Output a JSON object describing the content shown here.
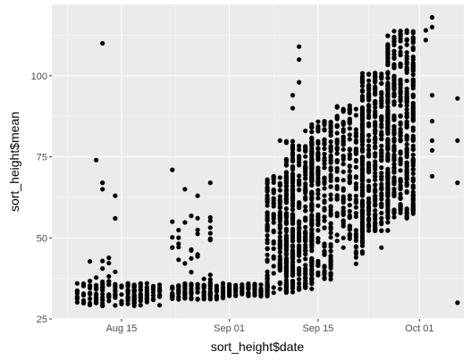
{
  "chart_data": {
    "type": "scatter",
    "title": "",
    "xlabel": "sort_height$date",
    "ylabel": "sort_height$mean",
    "xlim": [
      "2023-08-04",
      "2023-10-08"
    ],
    "ylim": [
      25,
      122
    ],
    "x_ticks": [
      {
        "date": "2023-08-15",
        "label": "Aug 15"
      },
      {
        "date": "2023-09-01",
        "label": "Sep 01"
      },
      {
        "date": "2023-09-15",
        "label": "Sep 15"
      },
      {
        "date": "2023-10-01",
        "label": "Oct 01"
      }
    ],
    "y_ticks": [
      25,
      50,
      75,
      100
    ],
    "grid": true,
    "background": "#ebebeb",
    "point_color": "#000000",
    "outliers": [
      {
        "date": "2023-08-11",
        "y": 74
      },
      {
        "date": "2023-08-12",
        "y": 67
      },
      {
        "date": "2023-08-12",
        "y": 65
      },
      {
        "date": "2023-08-14",
        "y": 63
      },
      {
        "date": "2023-08-14",
        "y": 56
      },
      {
        "date": "2023-08-12",
        "y": 110
      },
      {
        "date": "2023-08-23",
        "y": 71
      },
      {
        "date": "2023-08-23",
        "y": 55
      },
      {
        "date": "2023-08-25",
        "y": 65
      },
      {
        "date": "2023-08-27",
        "y": 63
      },
      {
        "date": "2023-08-29",
        "y": 67
      },
      {
        "date": "2023-09-09",
        "y": 80
      },
      {
        "date": "2023-09-11",
        "y": 94
      },
      {
        "date": "2023-09-12",
        "y": 109
      },
      {
        "date": "2023-09-12",
        "y": 105
      },
      {
        "date": "2023-09-12",
        "y": 98
      },
      {
        "date": "2023-09-11",
        "y": 90
      },
      {
        "date": "2023-09-13",
        "y": 83
      },
      {
        "date": "2023-09-19",
        "y": 80
      },
      {
        "date": "2023-09-19",
        "y": 47
      },
      {
        "date": "2023-09-17",
        "y": 46
      },
      {
        "date": "2023-09-22",
        "y": 49
      },
      {
        "date": "2023-09-25",
        "y": 47
      },
      {
        "date": "2023-09-21",
        "y": 44
      },
      {
        "date": "2023-09-21",
        "y": 42
      },
      {
        "date": "2023-10-03",
        "y": 118
      },
      {
        "date": "2023-10-03",
        "y": 115
      },
      {
        "date": "2023-10-02",
        "y": 114
      },
      {
        "date": "2023-10-02",
        "y": 111
      },
      {
        "date": "2023-10-03",
        "y": 94
      },
      {
        "date": "2023-10-03",
        "y": 86
      },
      {
        "date": "2023-10-03",
        "y": 80
      },
      {
        "date": "2023-10-03",
        "y": 77
      },
      {
        "date": "2023-10-03",
        "y": 69
      },
      {
        "date": "2023-10-07",
        "y": 93
      },
      {
        "date": "2023-10-07",
        "y": 80
      },
      {
        "date": "2023-10-07",
        "y": 67
      },
      {
        "date": "2023-10-07",
        "y": 30
      }
    ],
    "clusters": [
      {
        "start": "2023-08-08",
        "end": "2023-08-21",
        "min": 29,
        "max": 36,
        "n": 170
      },
      {
        "start": "2023-08-10",
        "end": "2023-08-14",
        "min": 36,
        "max": 44,
        "n": 12
      },
      {
        "start": "2023-08-23",
        "end": "2023-08-31",
        "min": 31,
        "max": 36,
        "n": 110
      },
      {
        "start": "2023-08-23",
        "end": "2023-08-29",
        "min": 36,
        "max": 57,
        "n": 30
      },
      {
        "start": "2023-09-01",
        "end": "2023-09-07",
        "min": 32,
        "max": 36,
        "n": 90
      },
      {
        "start": "2023-09-07",
        "end": "2023-09-11",
        "min": 33,
        "max": 70,
        "n": 220
      },
      {
        "start": "2023-09-10",
        "end": "2023-09-14",
        "min": 34,
        "max": 80,
        "n": 320
      },
      {
        "start": "2023-09-14",
        "end": "2023-09-17",
        "min": 37,
        "max": 86,
        "n": 230
      },
      {
        "start": "2023-09-18",
        "end": "2023-09-22",
        "min": 45,
        "max": 91,
        "n": 220
      },
      {
        "start": "2023-09-22",
        "end": "2023-09-26",
        "min": 52,
        "max": 101,
        "n": 350
      },
      {
        "start": "2023-09-26",
        "end": "2023-09-30",
        "min": 56,
        "max": 114,
        "n": 420
      }
    ]
  }
}
